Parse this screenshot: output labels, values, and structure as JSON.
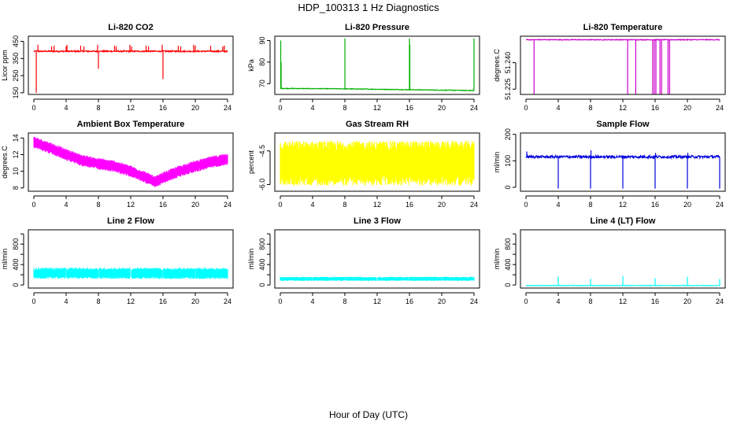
{
  "title": "HDP_100313  1 Hz Diagnostics",
  "xlabel": "Hour of Day (UTC)",
  "chart_data": [
    {
      "type": "line",
      "title": "Li-820 CO2",
      "ylabel": "Licor ppm",
      "color": "#ff0000",
      "xlim": [
        0,
        24
      ],
      "ylim": [
        140,
        480
      ],
      "xticks": [
        0,
        4,
        8,
        12,
        16,
        20,
        24
      ],
      "yticks": [
        150,
        250,
        350,
        450
      ],
      "ytick_labels": [
        "150",
        "250",
        "350",
        "450"
      ],
      "baseline": 392,
      "noise": 4,
      "spikes": [
        [
          0.3,
          150
        ],
        [
          0.5,
          430
        ],
        [
          2.2,
          420
        ],
        [
          2.5,
          425
        ],
        [
          4.0,
          420
        ],
        [
          4.1,
          430
        ],
        [
          5.8,
          425
        ],
        [
          6.2,
          420
        ],
        [
          7.9,
          430
        ],
        [
          8.0,
          290
        ],
        [
          10.0,
          425
        ],
        [
          10.2,
          420
        ],
        [
          11.9,
          430
        ],
        [
          12.1,
          420
        ],
        [
          13.9,
          425
        ],
        [
          14.2,
          420
        ],
        [
          15.9,
          430
        ],
        [
          16.0,
          230
        ],
        [
          17.9,
          425
        ],
        [
          18.2,
          420
        ],
        [
          19.8,
          430
        ],
        [
          20.0,
          425
        ],
        [
          21.9,
          425
        ],
        [
          23.4,
          420
        ],
        [
          23.6,
          425
        ]
      ]
    },
    {
      "type": "line",
      "title": "Li-820 Pressure",
      "ylabel": "kPa",
      "color": "#00b000",
      "xlim": [
        0,
        24
      ],
      "ylim": [
        65,
        92
      ],
      "xticks": [
        0,
        4,
        8,
        12,
        16,
        20,
        24
      ],
      "yticks": [
        70,
        80,
        90
      ],
      "ytick_labels": [
        "70",
        "80",
        "90"
      ],
      "trend": [
        [
          0,
          67.8
        ],
        [
          8,
          67.6
        ],
        [
          16,
          67.2
        ],
        [
          24,
          66.8
        ]
      ],
      "noise": 0.15,
      "spikes": [
        [
          0.05,
          90
        ],
        [
          0.1,
          80
        ],
        [
          8.0,
          91
        ],
        [
          16.0,
          91
        ],
        [
          16.05,
          88
        ],
        [
          24.0,
          91
        ]
      ]
    },
    {
      "type": "line",
      "title": "Li-820 Temperature",
      "ylabel": "degrees.C",
      "color": "#cc00cc",
      "xlim": [
        0,
        24
      ],
      "ylim": [
        51.222,
        51.255
      ],
      "xticks": [
        0,
        4,
        8,
        12,
        16,
        20,
        24
      ],
      "yticks": [
        51.225,
        51.24
      ],
      "ytick_labels": [
        "51.225",
        "51.240"
      ],
      "baseline": 51.253,
      "noise": 0.0002,
      "spikes": [
        [
          1.0,
          51.222
        ],
        [
          12.6,
          51.222
        ],
        [
          13.6,
          51.222
        ],
        [
          15.7,
          51.222
        ],
        [
          15.9,
          51.222
        ],
        [
          16.1,
          51.222
        ],
        [
          16.6,
          51.222
        ],
        [
          16.8,
          51.222
        ],
        [
          17.6,
          51.222
        ],
        [
          17.8,
          51.222
        ]
      ]
    },
    {
      "type": "band",
      "title": "Ambient Box Temperature",
      "ylabel": "degrees.C",
      "color": "#ff00ff",
      "xlim": [
        0,
        24
      ],
      "ylim": [
        7.6,
        14.6
      ],
      "xticks": [
        0,
        4,
        8,
        12,
        16,
        20,
        24
      ],
      "yticks": [
        8,
        10,
        12,
        14
      ],
      "ytick_labels": [
        "8",
        "10",
        "12",
        "14"
      ],
      "trend": [
        [
          0,
          13.5
        ],
        [
          2,
          12.8
        ],
        [
          4,
          12.0
        ],
        [
          6,
          11.3
        ],
        [
          8,
          10.9
        ],
        [
          10,
          10.6
        ],
        [
          12,
          10.0
        ],
        [
          14,
          9.2
        ],
        [
          15,
          8.7
        ],
        [
          16,
          9.2
        ],
        [
          18,
          10.0
        ],
        [
          20,
          10.6
        ],
        [
          22,
          11.1
        ],
        [
          24,
          11.5
        ]
      ],
      "halfwidth": 0.7
    },
    {
      "type": "band",
      "title": "Gas Stream RH",
      "ylabel": "percent",
      "color": "#ffff00",
      "xlim": [
        0,
        24
      ],
      "ylim": [
        -6.3,
        -3.7
      ],
      "xticks": [
        0,
        4,
        8,
        12,
        16,
        20,
        24
      ],
      "yticks": [
        -6.0,
        -4.5
      ],
      "ytick_labels": [
        "-6.0",
        "-4.5"
      ],
      "trend": [
        [
          0,
          -5.05
        ],
        [
          24,
          -5.05
        ]
      ],
      "halfwidth": 1.0
    },
    {
      "type": "line",
      "title": "Sample Flow",
      "ylabel": "ml/min",
      "color": "#0000dd",
      "xlim": [
        0,
        24
      ],
      "ylim": [
        -15,
        205
      ],
      "xticks": [
        0,
        4,
        8,
        12,
        16,
        20,
        24
      ],
      "yticks": [
        0,
        100,
        200
      ],
      "ytick_labels": [
        "0",
        "100",
        "200"
      ],
      "baseline": 115,
      "noise": 5,
      "spikes": [
        [
          0.1,
          135
        ],
        [
          4.0,
          -5
        ],
        [
          8.0,
          -5
        ],
        [
          8.05,
          140
        ],
        [
          12.0,
          -5
        ],
        [
          16.0,
          -5
        ],
        [
          16.05,
          130
        ],
        [
          20.0,
          -5
        ],
        [
          20.05,
          130
        ],
        [
          24.0,
          -5
        ]
      ]
    },
    {
      "type": "band",
      "title": "Line 2 Flow",
      "ylabel": "ml/min",
      "color": "#00ffff",
      "xlim": [
        0,
        24
      ],
      "ylim": [
        -60,
        1080
      ],
      "xticks": [
        0,
        4,
        8,
        12,
        16,
        20,
        24
      ],
      "yticks": [
        0,
        200,
        400,
        600,
        800,
        1000
      ],
      "ytick_labels": [
        "0",
        "400",
        "800"
      ],
      "trend": [
        [
          0,
          230
        ],
        [
          24,
          225
        ]
      ],
      "halfwidth": 110,
      "gaps": [
        4,
        8,
        12,
        16,
        20
      ]
    },
    {
      "type": "band",
      "title": "Line 3 Flow",
      "ylabel": "ml/min",
      "color": "#00ffff",
      "xlim": [
        0,
        24
      ],
      "ylim": [
        -60,
        1080
      ],
      "xticks": [
        0,
        4,
        8,
        12,
        16,
        20,
        24
      ],
      "yticks": [
        0,
        200,
        400,
        600,
        800,
        1000
      ],
      "ytick_labels": [
        "0",
        "400",
        "800"
      ],
      "trend": [
        [
          0,
          120
        ],
        [
          24,
          120
        ]
      ],
      "halfwidth": 40,
      "gaps": [
        4,
        8,
        12,
        16,
        20
      ]
    },
    {
      "type": "line",
      "title": "Line 4 (LT) Flow",
      "ylabel": "ml/min",
      "color": "#00ffff",
      "xlim": [
        0,
        24
      ],
      "ylim": [
        -60,
        1080
      ],
      "xticks": [
        0,
        4,
        8,
        12,
        16,
        20,
        24
      ],
      "yticks": [
        0,
        200,
        400,
        600,
        800,
        1000
      ],
      "ytick_labels": [
        "0",
        "400",
        "800"
      ],
      "baseline": -10,
      "noise": 4,
      "spikes": [
        [
          4.0,
          160
        ],
        [
          8.0,
          120
        ],
        [
          12.0,
          170
        ],
        [
          16.0,
          130
        ],
        [
          20.0,
          160
        ],
        [
          24.0,
          120
        ]
      ]
    }
  ]
}
